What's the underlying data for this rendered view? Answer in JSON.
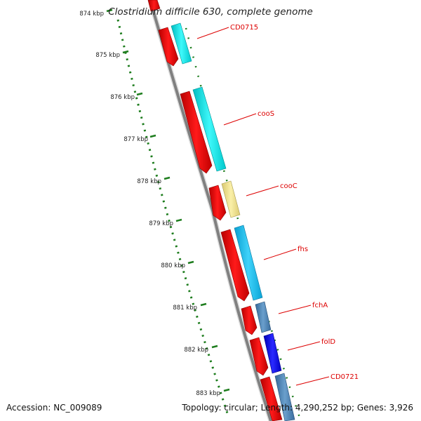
{
  "title": "Clostridium difficile 630, complete genome",
  "footer": {
    "accession": "Accession: NC_009089",
    "summary": "Topology: circular; Length: 4,290,252 bp; Genes: 3,926"
  },
  "scale_labels": [
    "874 kbp",
    "875 kbp",
    "876 kbp",
    "877 kbp",
    "878 kbp",
    "879 kbp",
    "880 kbp",
    "881 kbp",
    "882 kbp",
    "883 kbp"
  ],
  "gene_labels": [
    "CD0715",
    "cooS",
    "cooC",
    "fhs",
    "fchA",
    "folD",
    "CD0721"
  ],
  "colors": {
    "backbone": "#808080",
    "scale": "#1e7d1e",
    "label": "#dd0000",
    "cds": "#ee0000",
    "cyan": "#00e5e8",
    "khaki": "#f0e08c",
    "sky": "#19bdf0",
    "steel": "#4682b4",
    "blue": "#0000ff"
  }
}
